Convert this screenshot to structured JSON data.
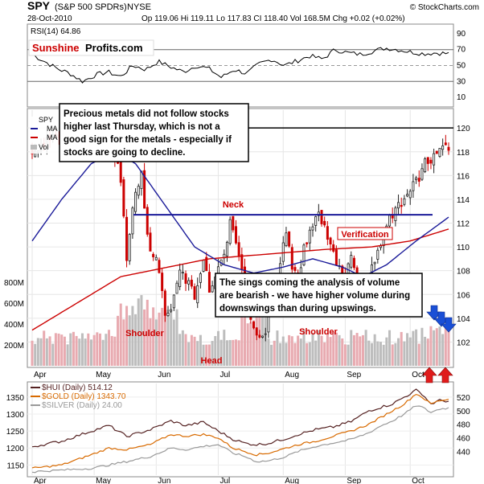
{
  "header": {
    "ticker": "SPY",
    "name": "(S&P 500 SPDRs)",
    "exchange": "NYSE",
    "date": "28-Oct-2010",
    "ohlc_text": "Op 119.06  Hi 119.11  Lo 117.83  CI 118.40  Vol 168.5M  Chg +0.02 (+0.02%)",
    "credit": "© StockCharts.com",
    "brand_red": "Sunshine",
    "brand_black": "Profits.com"
  },
  "colors": {
    "up": "#222222",
    "down": "#cc0000",
    "ma_long": "#cc0000",
    "ma_short": "#1a1a99",
    "neck": "#1a1a99",
    "annot_red": "#cc0000",
    "arrow_blue": "#1a4fd6",
    "arrow_red": "#e01b1b",
    "hui": "#552222",
    "gold": "#d86a00",
    "silver": "#999999"
  },
  "annotations": {
    "box1": [
      "Precious metals did not follow stocks",
      "higher last Thursday, which is not a",
      "good sign for the metals - especially if",
      "stocks are going to decline."
    ],
    "box2": [
      "The sings coming the analysis of volume",
      "are bearish - we have higher volume during",
      "downswings than during upswings."
    ],
    "neck": "Neck",
    "verification": "Verification",
    "shoulder": "Shoulder",
    "head": "Head"
  },
  "legends": {
    "main": [
      "SPY",
      "MA",
      "MA",
      "Vol"
    ],
    "rsi": "RSI(14) 64.86",
    "hui": "$HUI (Daily) 514.12",
    "gold": "$GOLD (Daily) 1343.70",
    "silver": "$SILVER (Daily) 24.00"
  },
  "chart_data": [
    {
      "type": "line",
      "panel": "RSI",
      "ylim": [
        0,
        100
      ],
      "yticks": [
        10,
        30,
        50,
        70,
        90
      ],
      "reference_lines": [
        30,
        50,
        70
      ],
      "series": [
        {
          "name": "RSI(14)",
          "values": [
            64,
            55,
            46,
            40,
            30,
            38,
            42,
            36,
            50,
            45,
            55,
            48,
            42,
            50,
            46,
            35,
            45,
            40,
            52,
            58,
            50,
            56,
            62,
            58,
            70,
            66,
            64,
            68,
            72,
            70,
            67,
            65,
            66,
            64.86
          ]
        }
      ]
    },
    {
      "type": "candlestick",
      "panel": "SPY price",
      "x_labels": [
        "Apr",
        "May",
        "Jun",
        "Jul",
        "Aug",
        "Sep",
        "Oct"
      ],
      "ylim": [
        100,
        121.5
      ],
      "yticks": [
        102,
        104,
        106,
        108,
        110,
        112,
        114,
        116,
        118,
        120
      ],
      "close_waypoints": [
        [
          0,
          118.0
        ],
        [
          5,
          119.0
        ],
        [
          15,
          118.8
        ],
        [
          18,
          120.0
        ],
        [
          23,
          118.0
        ],
        [
          25,
          119.5
        ],
        [
          29,
          117.0
        ],
        [
          31,
          113.0
        ],
        [
          32,
          109.0
        ],
        [
          33,
          111.5
        ],
        [
          35,
          115.0
        ],
        [
          37,
          116.0
        ],
        [
          38,
          113.0
        ],
        [
          40,
          110.0
        ],
        [
          43,
          108.0
        ],
        [
          45,
          104.0
        ],
        [
          47,
          105.0
        ],
        [
          50,
          108.0
        ],
        [
          55,
          106.0
        ],
        [
          58,
          109.0
        ],
        [
          60,
          106.5
        ],
        [
          62,
          107.5
        ],
        [
          66,
          110.0
        ],
        [
          67,
          112.0
        ],
        [
          70,
          109.0
        ],
        [
          73,
          105.5
        ],
        [
          75,
          103.0
        ],
        [
          77,
          102.5
        ],
        [
          79,
          103.0
        ],
        [
          81,
          106.5
        ],
        [
          83,
          108.0
        ],
        [
          86,
          111.0
        ],
        [
          88,
          108.5
        ],
        [
          90,
          107.5
        ],
        [
          92,
          110.0
        ],
        [
          95,
          112.0
        ],
        [
          97,
          112.5
        ],
        [
          99,
          112.0
        ],
        [
          101,
          110.0
        ],
        [
          104,
          108.0
        ],
        [
          106,
          107.5
        ],
        [
          108,
          109.0
        ],
        [
          110,
          107.0
        ],
        [
          112,
          106.0
        ],
        [
          114,
          107.5
        ],
        [
          116,
          108.5
        ],
        [
          118,
          110.5
        ],
        [
          121,
          112.5
        ],
        [
          124,
          113.5
        ],
        [
          127,
          114.5
        ],
        [
          130,
          115.5
        ],
        [
          133,
          117.0
        ],
        [
          136,
          117.5
        ],
        [
          139,
          118.3
        ],
        [
          141,
          118.4
        ]
      ],
      "ma_long": [
        [
          0,
          103
        ],
        [
          30,
          107.5
        ],
        [
          60,
          109.0
        ],
        [
          75,
          109.3
        ],
        [
          100,
          109.8
        ],
        [
          115,
          110.0
        ],
        [
          128,
          110.5
        ],
        [
          141,
          111.5
        ]
      ],
      "ma_short": [
        [
          0,
          110.5
        ],
        [
          10,
          114.0
        ],
        [
          20,
          117.0
        ],
        [
          28,
          118.0
        ],
        [
          35,
          117.0
        ],
        [
          45,
          113.5
        ],
        [
          55,
          110.0
        ],
        [
          65,
          108.5
        ],
        [
          75,
          107.8
        ],
        [
          85,
          108.3
        ],
        [
          95,
          109.0
        ],
        [
          105,
          108.3
        ],
        [
          112,
          107.5
        ],
        [
          120,
          108.5
        ],
        [
          130,
          110.5
        ],
        [
          141,
          112.5
        ]
      ],
      "neck_line": 112.7,
      "resistance_line": 120.0,
      "volume_scale_labels": [
        "200M",
        "400M",
        "600M",
        "800M"
      ]
    },
    {
      "type": "line",
      "panel": "Metals",
      "x_labels": [
        "Apr",
        "May",
        "Jun",
        "Jul",
        "Aug",
        "Sep",
        "Oct"
      ],
      "left_axis": {
        "name": "GOLD",
        "ylim": [
          1120,
          1390
        ],
        "ticks": [
          1150,
          1200,
          1250,
          1300,
          1350
        ]
      },
      "right_axis": {
        "name": "HUI",
        "ylim": [
          405,
          540
        ],
        "ticks": [
          440,
          460,
          480,
          500,
          520
        ]
      },
      "series": [
        {
          "name": "$HUI (Daily)",
          "axis": "right",
          "waypoints": [
            [
              0,
              447
            ],
            [
              10,
              455
            ],
            [
              20,
              470
            ],
            [
              26,
              478
            ],
            [
              32,
              462
            ],
            [
              40,
              472
            ],
            [
              47,
              485
            ],
            [
              52,
              478
            ],
            [
              58,
              483
            ],
            [
              63,
              470
            ],
            [
              68,
              458
            ],
            [
              72,
              452
            ],
            [
              76,
              450
            ],
            [
              80,
              452
            ],
            [
              86,
              459
            ],
            [
              90,
              465
            ],
            [
              96,
              472
            ],
            [
              102,
              476
            ],
            [
              108,
              484
            ],
            [
              114,
              500
            ],
            [
              118,
              505
            ],
            [
              122,
              510
            ],
            [
              126,
              520
            ],
            [
              130,
              530
            ],
            [
              132,
              525
            ],
            [
              135,
              510
            ],
            [
              138,
              515
            ],
            [
              141,
              514
            ]
          ]
        },
        {
          "name": "$GOLD (Daily)",
          "axis": "left",
          "waypoints": [
            [
              0,
              1140
            ],
            [
              10,
              1150
            ],
            [
              20,
              1180
            ],
            [
              26,
              1200
            ],
            [
              32,
              1195
            ],
            [
              40,
              1210
            ],
            [
              47,
              1240
            ],
            [
              52,
              1235
            ],
            [
              58,
              1240
            ],
            [
              63,
              1230
            ],
            [
              68,
              1200
            ],
            [
              72,
              1190
            ],
            [
              76,
              1180
            ],
            [
              80,
              1185
            ],
            [
              86,
              1200
            ],
            [
              90,
              1210
            ],
            [
              96,
              1220
            ],
            [
              102,
              1235
            ],
            [
              108,
              1250
            ],
            [
              114,
              1270
            ],
            [
              118,
              1290
            ],
            [
              122,
              1310
            ],
            [
              126,
              1330
            ],
            [
              130,
              1360
            ],
            [
              132,
              1350
            ],
            [
              135,
              1330
            ],
            [
              138,
              1340
            ],
            [
              141,
              1343.7
            ]
          ]
        },
        {
          "name": "$SILVER (Daily)",
          "axis": "left",
          "waypoints": [
            [
              0,
              1130
            ],
            [
              10,
              1135
            ],
            [
              20,
              1140
            ],
            [
              26,
              1150
            ],
            [
              32,
              1160
            ],
            [
              40,
              1175
            ],
            [
              47,
              1200
            ],
            [
              52,
              1195
            ],
            [
              58,
              1205
            ],
            [
              63,
              1210
            ],
            [
              68,
              1185
            ],
            [
              72,
              1175
            ],
            [
              76,
              1160
            ],
            [
              80,
              1162
            ],
            [
              86,
              1175
            ],
            [
              90,
              1190
            ],
            [
              96,
              1205
            ],
            [
              102,
              1215
            ],
            [
              108,
              1225
            ],
            [
              114,
              1245
            ],
            [
              118,
              1265
            ],
            [
              122,
              1280
            ],
            [
              126,
              1300
            ],
            [
              130,
              1325
            ],
            [
              132,
              1320
            ],
            [
              135,
              1305
            ],
            [
              138,
              1315
            ],
            [
              141,
              1318
            ]
          ]
        }
      ]
    }
  ]
}
